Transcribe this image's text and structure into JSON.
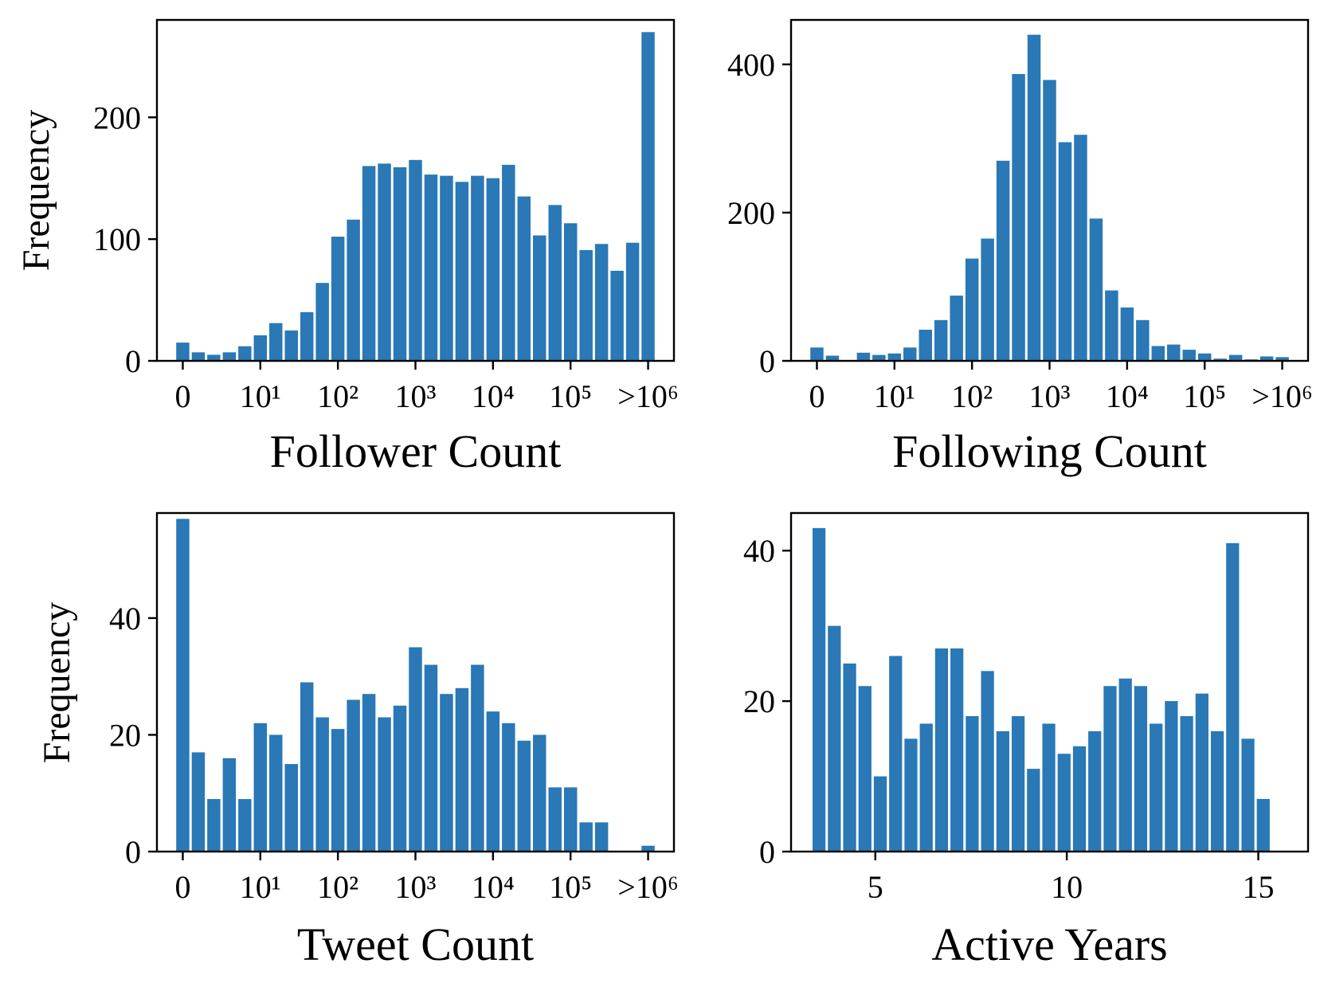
{
  "colors": {
    "bar": "#2a78b5",
    "axis": "#000000",
    "background": "#ffffff"
  },
  "chart_data": [
    {
      "type": "bar",
      "xlabel": "Follower Count",
      "ylabel": "Frequency",
      "x_scale": "log-binned",
      "xtick_labels": [
        "0",
        "10¹",
        "10²",
        "10³",
        "10⁴",
        "10⁵",
        ">10⁶"
      ],
      "ylim": [
        0,
        280
      ],
      "ytick_values": [
        0,
        100,
        200
      ],
      "ytick_labels": [
        "0",
        "100",
        "200"
      ],
      "values": [
        15,
        7,
        5,
        7,
        12,
        21,
        31,
        25,
        40,
        64,
        102,
        116,
        160,
        162,
        159,
        165,
        153,
        152,
        147,
        152,
        150,
        161,
        135,
        103,
        128,
        113,
        91,
        96,
        74,
        97,
        270
      ]
    },
    {
      "type": "bar",
      "xlabel": "Following Count",
      "ylabel": "",
      "x_scale": "log-binned",
      "xtick_labels": [
        "0",
        "10¹",
        "10²",
        "10³",
        "10⁴",
        "10⁵",
        ">10⁶"
      ],
      "ylim": [
        0,
        460
      ],
      "ytick_values": [
        0,
        200,
        400
      ],
      "ytick_labels": [
        "0",
        "200",
        "400"
      ],
      "values": [
        18,
        7,
        0,
        11,
        8,
        10,
        18,
        42,
        55,
        88,
        138,
        165,
        270,
        387,
        440,
        379,
        295,
        305,
        192,
        95,
        72,
        55,
        20,
        22,
        15,
        10,
        3,
        8,
        2,
        6,
        5
      ]
    },
    {
      "type": "bar",
      "xlabel": "Tweet Count",
      "ylabel": "Frequency",
      "x_scale": "log-binned",
      "xtick_labels": [
        "0",
        "10¹",
        "10²",
        "10³",
        "10⁴",
        "10⁵",
        ">10⁶"
      ],
      "ylim": [
        0,
        58
      ],
      "ytick_values": [
        0,
        20,
        40
      ],
      "ytick_labels": [
        "0",
        "20",
        "40"
      ],
      "values": [
        57,
        17,
        9,
        16,
        9,
        22,
        20,
        15,
        29,
        23,
        21,
        26,
        27,
        23,
        25,
        35,
        32,
        27,
        28,
        32,
        24,
        22,
        19,
        20,
        11,
        11,
        5,
        5,
        0,
        0,
        1
      ]
    },
    {
      "type": "bar",
      "xlabel": "Active Years",
      "ylabel": "",
      "x_scale": "linear",
      "xlim": [
        2.8,
        16.3
      ],
      "xtick_values": [
        5,
        10,
        15
      ],
      "xtick_labels": [
        "5",
        "10",
        "15"
      ],
      "bin_start": 3.33,
      "bin_width": 0.4,
      "ylim": [
        0,
        45
      ],
      "ytick_values": [
        0,
        20,
        40
      ],
      "ytick_labels": [
        "0",
        "20",
        "40"
      ],
      "values": [
        43,
        30,
        25,
        22,
        10,
        26,
        15,
        17,
        27,
        27,
        18,
        24,
        16,
        18,
        11,
        17,
        13,
        14,
        16,
        22,
        23,
        22,
        17,
        20,
        18,
        21,
        16,
        41,
        15,
        7
      ]
    }
  ]
}
